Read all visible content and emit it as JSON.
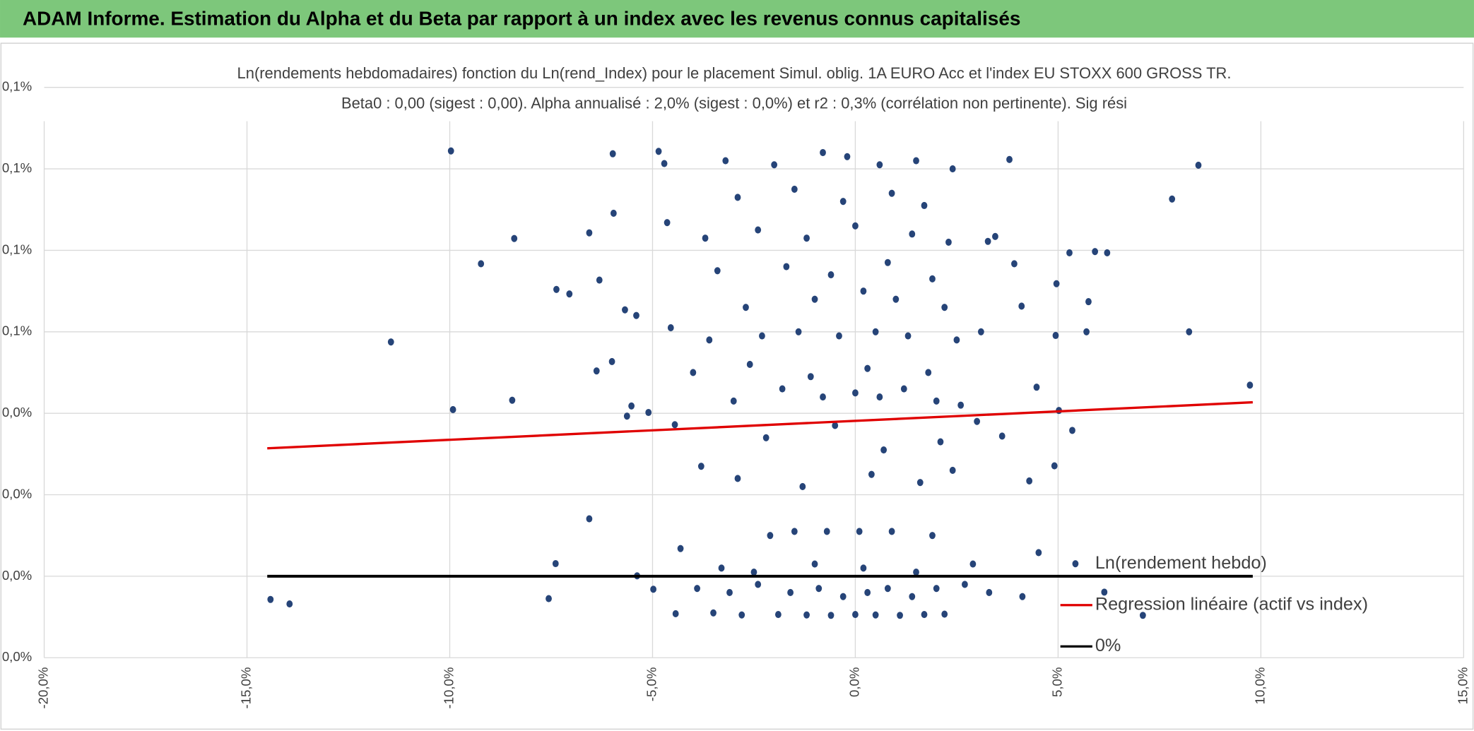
{
  "header": {
    "title": "ADAM Informe. Estimation du Alpha et du Beta par rapport à un index avec les revenus connus capitalisés"
  },
  "chart_data": {
    "type": "scatter",
    "title": "Ln(rendements hebdomadaires) fonction du Ln(rend_Index) pour le placement Simul. oblig. 1A EURO Acc et l'index EU STOXX 600 GROSS TR.",
    "subtitle": "Beta0 : 0,00 (sigest : 0,00). Alpha annualisé : 2,0% (sigest : 0,0%) et r2 : 0,3% (corrélation non pertinente). Sig rési",
    "grid": true,
    "xlim": [
      -20,
      15
    ],
    "xticks": [
      {
        "value": -20,
        "label": "-20,0%"
      },
      {
        "value": -15,
        "label": "-15,0%"
      },
      {
        "value": -10,
        "label": "-10,0%"
      },
      {
        "value": -5,
        "label": "-5,0%"
      },
      {
        "value": 0,
        "label": "0,0%"
      },
      {
        "value": 5,
        "label": "5,0%"
      },
      {
        "value": 10,
        "label": "10,0%"
      },
      {
        "value": 15,
        "label": "15,0%"
      }
    ],
    "ylim": [
      -0.02,
      0.12
    ],
    "yticks": [
      {
        "value": -0.02,
        "label": "0,0%"
      },
      {
        "value": 0,
        "label": "0,0%"
      },
      {
        "value": 0.02,
        "label": "0,0%"
      },
      {
        "value": 0.04,
        "label": "0,0%"
      },
      {
        "value": 0.06,
        "label": "0,1%"
      },
      {
        "value": 0.08,
        "label": "0,1%"
      },
      {
        "value": 0.1,
        "label": "0,1%"
      },
      {
        "value": 0.12,
        "label": "0,1%"
      }
    ],
    "series": [
      {
        "name": "Ln(rendement hebdo)",
        "type": "scatter",
        "color": "#264478",
        "x": [
          -9.97,
          -11.45,
          -9.92,
          -14.42,
          -13.95,
          -9.23,
          -8.41,
          -8.46,
          -7.56,
          -7.39,
          -7.37,
          -7.05,
          -6.56,
          -6.56,
          -6.31,
          -5.98,
          -5.96,
          -6.38,
          -6.0,
          -5.68,
          -5.63,
          -5.52,
          -5.4,
          -5.38,
          -5.1,
          -4.85,
          -4.71,
          -4.64,
          -4.55,
          -4.45,
          -4.43,
          -4.31,
          -4.98,
          8.46,
          7.81,
          8.23,
          9.73,
          6.21,
          5.91,
          5.75,
          5.7,
          7.09,
          6.14,
          5.28,
          5.35,
          5.02,
          4.96,
          4.94,
          4.91,
          4.52,
          4.47,
          4.29,
          4.12,
          3.92,
          3.8,
          4.1,
          3.45,
          3.27,
          3.62,
          -3.5,
          -2.8,
          -1.9,
          -1.2,
          -0.6,
          0,
          0.5,
          1.1,
          1.7,
          2.2,
          -3.9,
          -3.1,
          -2.4,
          -1.6,
          -0.9,
          -0.3,
          0.3,
          0.8,
          1.4,
          2.0,
          2.7,
          3.3,
          -3.3,
          -2.5,
          -1.0,
          0.2,
          1.5,
          2.9,
          -2.1,
          -0.7,
          0.1,
          0.9,
          1.9,
          -1.5,
          -2.9,
          -1.3,
          0.4,
          1.6,
          2.4,
          -3.8,
          -2.2,
          -0.5,
          0.7,
          2.1,
          3.0,
          -3.0,
          -1.8,
          -0.8,
          0,
          0.6,
          1.2,
          2.0,
          2.6,
          -4.0,
          -2.6,
          -1.1,
          0.3,
          1.8,
          -3.6,
          -2.3,
          -1.4,
          -0.4,
          0.5,
          1.3,
          2.5,
          3.1,
          -2.7,
          -1.0,
          0.2,
          1.0,
          2.2,
          -3.4,
          -1.7,
          -0.6,
          0.8,
          1.9,
          -3.7,
          -2.4,
          -1.2,
          0,
          1.4,
          2.3,
          -2.9,
          -1.5,
          -0.3,
          0.9,
          1.7,
          -3.2,
          -2.0,
          -0.8,
          -0.2,
          0.6,
          1.5,
          2.4
        ],
        "values": [
          0.1044,
          0.0575,
          0.0409,
          -0.0057,
          -0.0068,
          0.0767,
          0.0829,
          0.0432,
          -0.0055,
          0.0031,
          0.0704,
          0.0693,
          0.0141,
          0.0843,
          0.0727,
          0.1037,
          0.0891,
          0.0504,
          0.0527,
          0.0654,
          0.0393,
          0.0418,
          0.064,
          0.0001,
          0.0402,
          0.1043,
          0.1013,
          0.0868,
          0.061,
          0.0372,
          -0.0092,
          0.0068,
          -0.0032,
          0.1009,
          0.0926,
          0.06,
          0.0469,
          0.0794,
          0.0797,
          0.0674,
          0.06,
          -0.0096,
          -0.0039,
          0.0794,
          0.0358,
          0.0407,
          0.0718,
          0.0591,
          0.0271,
          0.0058,
          0.0464,
          0.0234,
          -0.005,
          0.0767,
          0.1023,
          0.0663,
          0.0834,
          0.0822,
          0.0344,
          -0.009,
          -0.0095,
          -0.0094,
          -0.0095,
          -0.0096,
          -0.0094,
          -0.0095,
          -0.0096,
          -0.0094,
          -0.0093,
          -0.003,
          -0.004,
          -0.002,
          -0.004,
          -0.003,
          -0.005,
          -0.004,
          -0.003,
          -0.005,
          -0.003,
          -0.002,
          -0.004,
          0.002,
          0.001,
          0.003,
          0.002,
          0.001,
          0.003,
          0.01,
          0.011,
          0.011,
          0.011,
          0.01,
          0.011,
          0.024,
          0.022,
          0.025,
          0.023,
          0.026,
          0.027,
          0.034,
          0.037,
          0.031,
          0.033,
          0.038,
          0.043,
          0.046,
          0.044,
          0.045,
          0.044,
          0.046,
          0.043,
          0.042,
          0.05,
          0.052,
          0.049,
          0.051,
          0.05,
          0.058,
          0.059,
          0.06,
          0.059,
          0.06,
          0.059,
          0.058,
          0.06,
          0.066,
          0.068,
          0.07,
          0.068,
          0.066,
          0.075,
          0.076,
          0.074,
          0.077,
          0.073,
          0.083,
          0.085,
          0.083,
          0.086,
          0.084,
          0.082,
          0.093,
          0.095,
          0.092,
          0.094,
          0.091,
          0.102,
          0.101,
          0.104,
          0.103,
          0.101,
          0.102,
          0.1
        ]
      },
      {
        "name": "Regression linéaire (actif vs index)",
        "type": "line",
        "color": "#e00000",
        "x": [
          -14.5,
          9.8
        ],
        "values": [
          0.0314,
          0.0427
        ]
      },
      {
        "name": "0%",
        "type": "line",
        "color": "#000000",
        "x": [
          -14.5,
          9.8
        ],
        "values": [
          0,
          0
        ]
      }
    ]
  }
}
